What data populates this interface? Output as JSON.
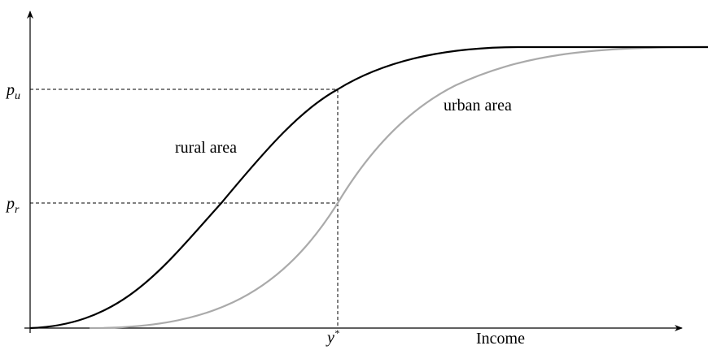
{
  "axes": {
    "x_label": "Income"
  },
  "y_labels": [
    {
      "base": "p",
      "sub": "u"
    },
    {
      "base": "p",
      "sub": "r"
    }
  ],
  "x_marker": {
    "base": "y",
    "sup": "*"
  },
  "curves": [
    {
      "label": "rural area"
    },
    {
      "label": "urban area"
    }
  ]
}
